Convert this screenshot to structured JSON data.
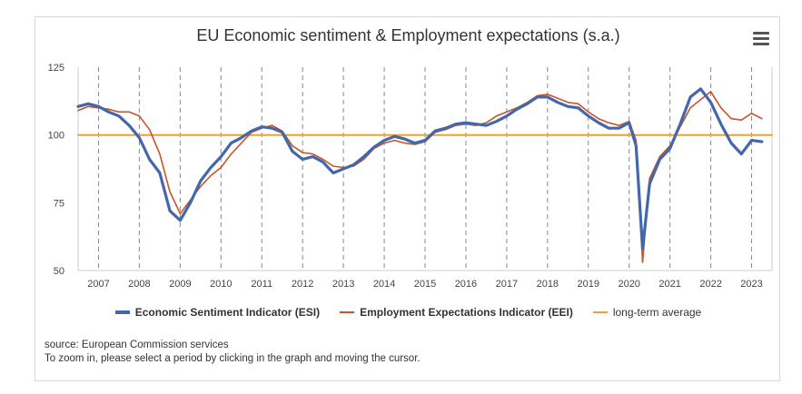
{
  "chart_data": {
    "type": "line",
    "title": "EU Economic sentiment & Employment expectations (s.a.)",
    "xlabel": "",
    "ylabel": "",
    "xlim": [
      2006.5,
      2023.5
    ],
    "ylim": [
      50,
      125
    ],
    "yticks": [
      50,
      75,
      100,
      125
    ],
    "xticks": [
      "2007",
      "2008",
      "2009",
      "2010",
      "2011",
      "2012",
      "2013",
      "2014",
      "2015",
      "2016",
      "2017",
      "2018",
      "2019",
      "2020",
      "2021",
      "2022",
      "2023"
    ],
    "grid": "vertical dashed lines at year boundaries",
    "legend_position": "bottom",
    "series": [
      {
        "name": "Economic Sentiment Indicator (ESI)",
        "color": "#4466aa",
        "points": [
          [
            2006.5,
            110.5
          ],
          [
            2006.75,
            111.5
          ],
          [
            2007.0,
            110.5
          ],
          [
            2007.25,
            108.5
          ],
          [
            2007.5,
            107
          ],
          [
            2007.75,
            103.5
          ],
          [
            2008.0,
            99
          ],
          [
            2008.25,
            91
          ],
          [
            2008.5,
            86
          ],
          [
            2008.75,
            72
          ],
          [
            2009.0,
            68.5
          ],
          [
            2009.25,
            75
          ],
          [
            2009.5,
            83
          ],
          [
            2009.75,
            88
          ],
          [
            2010.0,
            92
          ],
          [
            2010.25,
            97
          ],
          [
            2010.5,
            99
          ],
          [
            2010.75,
            101.5
          ],
          [
            2011.0,
            103
          ],
          [
            2011.25,
            102.5
          ],
          [
            2011.5,
            101
          ],
          [
            2011.75,
            94
          ],
          [
            2012.0,
            91
          ],
          [
            2012.25,
            92
          ],
          [
            2012.5,
            90
          ],
          [
            2012.75,
            86
          ],
          [
            2013.0,
            87.5
          ],
          [
            2013.25,
            89
          ],
          [
            2013.5,
            92
          ],
          [
            2013.75,
            95.5
          ],
          [
            2014.0,
            98
          ],
          [
            2014.25,
            99.5
          ],
          [
            2014.5,
            98.5
          ],
          [
            2014.75,
            97
          ],
          [
            2015.0,
            98
          ],
          [
            2015.25,
            101.5
          ],
          [
            2015.5,
            102.5
          ],
          [
            2015.75,
            104
          ],
          [
            2016.0,
            104.5
          ],
          [
            2016.25,
            104
          ],
          [
            2016.5,
            103.5
          ],
          [
            2016.75,
            105
          ],
          [
            2017.0,
            107
          ],
          [
            2017.25,
            109.5
          ],
          [
            2017.5,
            111.5
          ],
          [
            2017.75,
            114
          ],
          [
            2018.0,
            114
          ],
          [
            2018.25,
            112
          ],
          [
            2018.5,
            110.5
          ],
          [
            2018.75,
            110
          ],
          [
            2019.0,
            107
          ],
          [
            2019.25,
            104.5
          ],
          [
            2019.5,
            102.5
          ],
          [
            2019.75,
            102.5
          ],
          [
            2020.0,
            104.5
          ],
          [
            2020.17,
            96
          ],
          [
            2020.33,
            58
          ],
          [
            2020.5,
            82
          ],
          [
            2020.75,
            91
          ],
          [
            2021.0,
            95
          ],
          [
            2021.25,
            104
          ],
          [
            2021.5,
            114
          ],
          [
            2021.75,
            117
          ],
          [
            2022.0,
            112
          ],
          [
            2022.25,
            104
          ],
          [
            2022.5,
            97
          ],
          [
            2022.75,
            93
          ],
          [
            2023.0,
            98
          ],
          [
            2023.25,
            97.5
          ]
        ]
      },
      {
        "name": "Employment Expectations Indicator (EEI)",
        "color": "#c8542a",
        "points": [
          [
            2006.5,
            109
          ],
          [
            2006.75,
            110.5
          ],
          [
            2007.0,
            110
          ],
          [
            2007.25,
            109.5
          ],
          [
            2007.5,
            108.5
          ],
          [
            2007.75,
            108.5
          ],
          [
            2008.0,
            107
          ],
          [
            2008.25,
            102
          ],
          [
            2008.5,
            93
          ],
          [
            2008.75,
            79
          ],
          [
            2009.0,
            71
          ],
          [
            2009.25,
            76
          ],
          [
            2009.5,
            81
          ],
          [
            2009.75,
            85
          ],
          [
            2010.0,
            88
          ],
          [
            2010.25,
            93
          ],
          [
            2010.5,
            97
          ],
          [
            2010.75,
            101
          ],
          [
            2011.0,
            102.5
          ],
          [
            2011.25,
            103.5
          ],
          [
            2011.5,
            101.5
          ],
          [
            2011.75,
            96
          ],
          [
            2012.0,
            93.5
          ],
          [
            2012.25,
            93
          ],
          [
            2012.5,
            91
          ],
          [
            2012.75,
            88.5
          ],
          [
            2013.0,
            88
          ],
          [
            2013.25,
            88.5
          ],
          [
            2013.5,
            91
          ],
          [
            2013.75,
            95
          ],
          [
            2014.0,
            97
          ],
          [
            2014.25,
            98
          ],
          [
            2014.5,
            97
          ],
          [
            2014.75,
            96.5
          ],
          [
            2015.0,
            97.5
          ],
          [
            2015.25,
            101
          ],
          [
            2015.5,
            102
          ],
          [
            2015.75,
            103.5
          ],
          [
            2016.0,
            104
          ],
          [
            2016.25,
            103.5
          ],
          [
            2016.5,
            104.5
          ],
          [
            2016.75,
            107
          ],
          [
            2017.0,
            108.5
          ],
          [
            2017.25,
            110
          ],
          [
            2017.5,
            112
          ],
          [
            2017.75,
            114.5
          ],
          [
            2018.0,
            115
          ],
          [
            2018.25,
            113.5
          ],
          [
            2018.5,
            112
          ],
          [
            2018.75,
            111.5
          ],
          [
            2019.0,
            108.5
          ],
          [
            2019.25,
            106
          ],
          [
            2019.5,
            104.5
          ],
          [
            2019.75,
            103.5
          ],
          [
            2020.0,
            105
          ],
          [
            2020.17,
            98
          ],
          [
            2020.33,
            53
          ],
          [
            2020.5,
            84
          ],
          [
            2020.75,
            92
          ],
          [
            2021.0,
            96
          ],
          [
            2021.25,
            103
          ],
          [
            2021.5,
            110
          ],
          [
            2021.75,
            113
          ],
          [
            2022.0,
            116
          ],
          [
            2022.25,
            110
          ],
          [
            2022.5,
            106
          ],
          [
            2022.75,
            105.5
          ],
          [
            2023.0,
            108
          ],
          [
            2023.25,
            106
          ]
        ]
      },
      {
        "name": "long-term average",
        "color": "#f0a030",
        "points": [
          [
            2006.5,
            100
          ],
          [
            2023.5,
            100
          ]
        ]
      }
    ]
  },
  "source_line": "source: European Commission services",
  "hint_line": "To zoom in, please select a period by clicking in the graph and moving the cursor."
}
